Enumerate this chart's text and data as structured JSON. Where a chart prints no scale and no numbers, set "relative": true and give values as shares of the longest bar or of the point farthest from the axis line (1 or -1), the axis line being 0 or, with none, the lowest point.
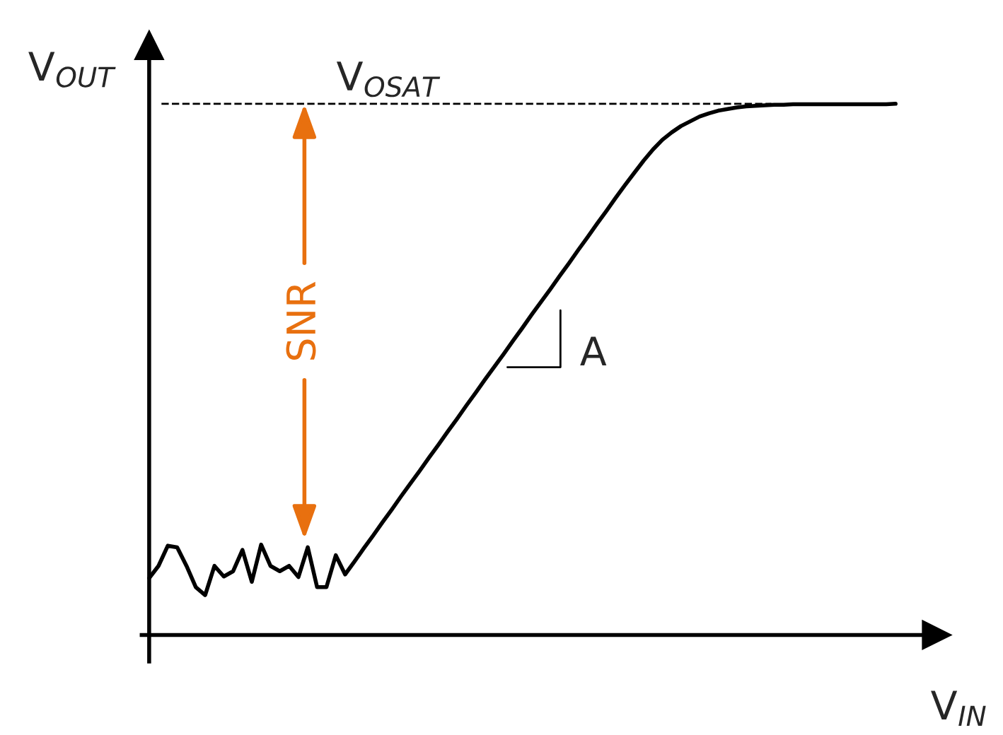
{
  "chart_data": {
    "type": "line",
    "relative": true,
    "xlabel": "V$_{IN}$",
    "ylabel": "V$_{OUT}$",
    "categories": [
      null,
      null,
      null,
      null,
      null,
      null,
      null,
      null,
      null,
      null,
      null,
      null,
      null,
      null,
      null,
      null,
      null,
      null,
      null,
      null,
      null,
      null,
      null,
      null,
      null,
      null,
      null,
      null,
      null,
      null,
      null,
      null,
      null,
      null,
      null,
      null,
      null,
      null,
      null,
      null,
      null,
      null,
      null,
      null,
      null,
      null,
      null,
      null,
      null,
      null,
      null,
      null,
      null,
      null,
      null,
      null,
      null,
      null,
      null,
      null,
      null,
      null,
      null,
      null,
      null,
      null,
      null,
      null,
      null,
      null,
      null,
      null,
      null,
      null,
      null,
      null,
      null,
      null,
      null,
      null,
      null
    ],
    "series": [
      {
        "color": "#000000",
        "values": [
          0.107,
          0.13,
          0.168,
          0.165,
          0.13,
          0.09,
          0.075,
          0.13,
          0.11,
          0.12,
          0.16,
          0.1,
          0.17,
          0.13,
          0.12,
          0.13,
          0.109,
          0.165,
          0.09,
          0.09,
          0.15,
          0.114,
          0.138,
          0.163,
          0.187,
          0.212,
          0.236,
          0.261,
          0.285,
          0.309,
          0.334,
          0.358,
          0.383,
          0.407,
          0.432,
          0.456,
          0.481,
          0.505,
          0.529,
          0.554,
          0.578,
          0.603,
          0.627,
          0.651,
          0.676,
          0.7,
          0.725,
          0.749,
          0.774,
          0.798,
          0.823,
          0.847,
          0.87,
          0.893,
          0.914,
          0.932,
          0.946,
          0.958,
          0.967,
          0.976,
          0.982,
          0.987,
          0.99,
          0.993,
          0.995,
          0.996,
          0.997,
          0.998,
          0.998,
          0.999,
          0.999,
          0.999,
          0.999,
          0.999,
          0.999,
          0.999,
          0.999,
          0.999,
          0.999,
          0.999,
          1.0
        ]
      }
    ],
    "ref_lines": [
      {
        "axis": "y",
        "value": 1.0,
        "label": "V$_{OSAT}$",
        "color": "#000000",
        "line_style": "dashed"
      }
    ],
    "annotations": [
      "SNR",
      "A"
    ],
    "line_style": "solid",
    "marker": "none",
    "grid": false,
    "legend": false
  }
}
